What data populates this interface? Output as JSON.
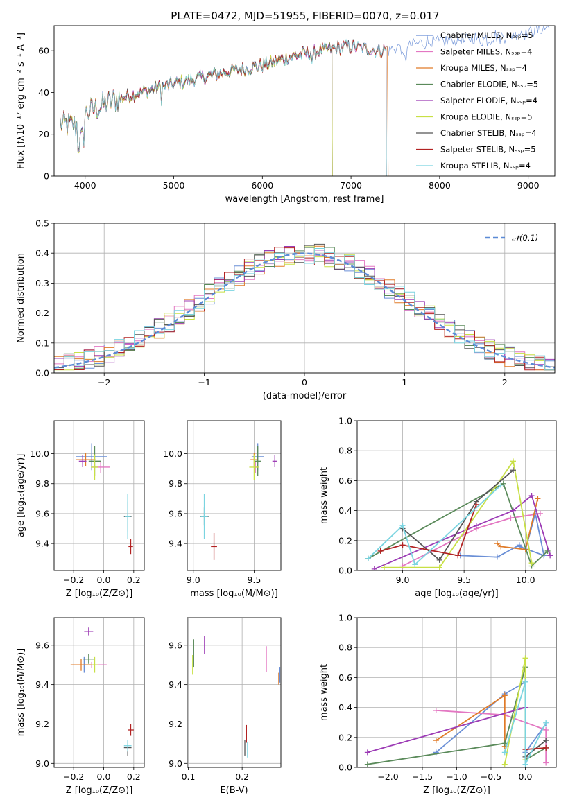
{
  "figure": {
    "title": "PLATE=0472, MJD=51955, FIBERID=0070, z=0.017"
  },
  "chart_data": [
    {
      "id": "spectrum",
      "type": "line",
      "xlabel": "wavelength [Angstrom, rest frame]",
      "ylabel": "Flux [fλ10⁻¹⁷ erg cm⁻² s⁻¹ A⁻¹]",
      "xlim": [
        3650,
        9300
      ],
      "ylim": [
        0,
        72
      ],
      "xticks": [
        4000,
        5000,
        6000,
        7000,
        8000,
        9000
      ],
      "yticks": [
        0,
        20,
        40,
        60
      ],
      "grid": false,
      "legend_position": "upper-right",
      "series": [
        {
          "name": "Chabrier MILES, Nₛₛₚ=5",
          "color": "#6a8fd6",
          "end": 9250
        },
        {
          "name": "Salpeter MILES, Nₛₛₚ=4",
          "color": "#e377c2",
          "end": 7400
        },
        {
          "name": "Kroupa MILES, Nₛₛₚ=4",
          "color": "#e07b28",
          "end": 7420
        },
        {
          "name": "Chabrier ELODIE, Nₛₛₚ=5",
          "color": "#5a8a5a",
          "end": 6790
        },
        {
          "name": "Salpeter ELODIE, Nₛₛₚ=4",
          "color": "#9c3bb5",
          "end": 6790
        },
        {
          "name": "Kroupa ELODIE, Nₛₛₚ=5",
          "color": "#c8e045",
          "end": 6790
        },
        {
          "name": "Chabrier STELIB, Nₛₛₚ=4",
          "color": "#555555",
          "end": 7400
        },
        {
          "name": "Salpeter STELIB, Nₛₛₚ=5",
          "color": "#b22222",
          "end": 7400
        },
        {
          "name": "Kroupa STELIB, Nₛₛₚ=4",
          "color": "#7ad4e0",
          "end": 7400
        }
      ],
      "anchors": {
        "x": [
          3700,
          3900,
          4000,
          4300,
          4800,
          5200,
          5600,
          6000,
          6400,
          6800,
          7000,
          7300,
          7800,
          8500,
          9000,
          9300
        ],
        "y": [
          25,
          24,
          30,
          36,
          42,
          46,
          50,
          53,
          58,
          61,
          62,
          60,
          64,
          66,
          69,
          72
        ]
      }
    },
    {
      "id": "residuals",
      "type": "bar",
      "xlabel": "(data-model)/error",
      "ylabel": "Normed distribution",
      "xlim": [
        -2.5,
        2.5
      ],
      "ylim": [
        0,
        0.5
      ],
      "xticks": [
        -2,
        -1,
        0,
        1,
        2
      ],
      "yticks": [
        0.0,
        0.1,
        0.2,
        0.3,
        0.4,
        0.5
      ],
      "grid": true,
      "bins": 50,
      "legend": {
        "name": "𝒩(0,1)",
        "color": "#5b8ad6",
        "position": "upper-right"
      }
    },
    {
      "id": "age-vs-Z",
      "type": "scatter",
      "xlabel": "Z [log₁₀(Z/Z⊙)]",
      "ylabel": "age  [log₁₀(age/yr)]",
      "xlim": [
        -0.33,
        0.27
      ],
      "ylim": [
        9.22,
        10.22
      ],
      "xticks": [
        -0.2,
        0.0,
        0.2
      ],
      "yticks": [
        9.4,
        9.6,
        9.8,
        10.0
      ],
      "grid": true,
      "points": [
        {
          "x": -0.08,
          "y": 9.98,
          "dx": 0.21,
          "dy": 0.18,
          "color": "#6a8fd6"
        },
        {
          "x": -0.02,
          "y": 9.91,
          "dx": 0.12,
          "dy": 0.08,
          "color": "#e377c2"
        },
        {
          "x": -0.12,
          "y": 9.96,
          "dx": 0.13,
          "dy": 0.09,
          "color": "#e07b28"
        },
        {
          "x": -0.06,
          "y": 9.95,
          "dx": 0.08,
          "dy": 0.2,
          "color": "#5a8a5a"
        },
        {
          "x": -0.14,
          "y": 9.95,
          "dx": 0.05,
          "dy": 0.08,
          "color": "#9c3bb5"
        },
        {
          "x": -0.06,
          "y": 9.91,
          "dx": 0.05,
          "dy": 0.17,
          "color": "#c8e045"
        },
        {
          "x": 0.16,
          "y": 9.58,
          "dx": 0.05,
          "dy": 0.2,
          "color": "#555555"
        },
        {
          "x": 0.18,
          "y": 9.38,
          "dx": 0.03,
          "dy": 0.1,
          "color": "#b22222"
        },
        {
          "x": 0.16,
          "y": 9.58,
          "dx": 0.04,
          "dy": 0.3,
          "color": "#7ad4e0"
        }
      ]
    },
    {
      "id": "age-vs-mass",
      "type": "scatter",
      "xlabel": "mass [log₁₀(M/M⊙)]",
      "ylabel": "",
      "xlim": [
        8.95,
        9.72
      ],
      "ylim": [
        9.22,
        10.22
      ],
      "xticks": [
        9.0,
        9.5
      ],
      "yticks": [
        9.4,
        9.6,
        9.8,
        10.0
      ],
      "grid": true,
      "points": [
        {
          "x": 9.53,
          "y": 9.98,
          "dx": 0.1,
          "dy": 0.18,
          "color": "#6a8fd6"
        },
        {
          "x": 9.51,
          "y": 9.91,
          "dx": 0.03,
          "dy": 0.08,
          "color": "#e377c2"
        },
        {
          "x": 9.5,
          "y": 9.96,
          "dx": 0.06,
          "dy": 0.09,
          "color": "#e07b28"
        },
        {
          "x": 9.53,
          "y": 9.95,
          "dx": 0.05,
          "dy": 0.2,
          "color": "#5a8a5a"
        },
        {
          "x": 9.67,
          "y": 9.95,
          "dx": 0.04,
          "dy": 0.08,
          "color": "#9c3bb5"
        },
        {
          "x": 9.5,
          "y": 9.91,
          "dx": 0.08,
          "dy": 0.17,
          "color": "#c8e045"
        },
        {
          "x": 9.09,
          "y": 9.58,
          "dx": 0.07,
          "dy": 0.12,
          "color": "#555555"
        },
        {
          "x": 9.17,
          "y": 9.38,
          "dx": 0.05,
          "dy": 0.18,
          "color": "#b22222"
        },
        {
          "x": 9.09,
          "y": 9.58,
          "dx": 0.06,
          "dy": 0.3,
          "color": "#7ad4e0"
        }
      ]
    },
    {
      "id": "massweight-vs-age",
      "type": "line",
      "xlabel": "age  [log₁₀(age/yr)]",
      "ylabel": "mass weight",
      "xlim": [
        8.63,
        10.25
      ],
      "ylim": [
        0,
        1
      ],
      "xticks": [
        9.0,
        9.5,
        10.0
      ],
      "yticks": [
        0.0,
        0.2,
        0.4,
        0.6,
        0.8,
        1.0
      ],
      "grid": true,
      "series": [
        {
          "color": "#6a8fd6",
          "points": [
            [
              9.47,
              0.1
            ],
            [
              9.77,
              0.09
            ],
            [
              9.95,
              0.17
            ],
            [
              10.0,
              0.14
            ],
            [
              10.08,
              0.38
            ],
            [
              10.15,
              0.1
            ],
            [
              9.95,
              0.16
            ]
          ]
        },
        {
          "color": "#e377c2",
          "points": [
            [
              9.0,
              0.03
            ],
            [
              9.6,
              0.28
            ],
            [
              9.88,
              0.35
            ],
            [
              10.12,
              0.38
            ]
          ]
        },
        {
          "color": "#e07b28",
          "points": [
            [
              9.77,
              0.18
            ],
            [
              9.8,
              0.16
            ],
            [
              10.0,
              0.14
            ],
            [
              10.1,
              0.48
            ]
          ]
        },
        {
          "color": "#5a8a5a",
          "points": [
            [
              8.72,
              0.08
            ],
            [
              9.82,
              0.58
            ],
            [
              10.05,
              0.03
            ],
            [
              10.18,
              0.13
            ]
          ]
        },
        {
          "color": "#9c3bb5",
          "points": [
            [
              8.77,
              0.01
            ],
            [
              9.6,
              0.3
            ],
            [
              9.9,
              0.4
            ],
            [
              10.05,
              0.5
            ],
            [
              10.2,
              0.1
            ]
          ]
        },
        {
          "color": "#c8e045",
          "points": [
            [
              8.85,
              0.02
            ],
            [
              9.3,
              0.02
            ],
            [
              9.9,
              0.73
            ],
            [
              10.05,
              0.05
            ]
          ]
        },
        {
          "color": "#555555",
          "points": [
            [
              9.0,
              0.28
            ],
            [
              9.3,
              0.07
            ],
            [
              9.6,
              0.46
            ],
            [
              9.9,
              0.67
            ]
          ]
        },
        {
          "color": "#b22222",
          "points": [
            [
              8.82,
              0.13
            ],
            [
              9.0,
              0.17
            ],
            [
              9.45,
              0.1
            ],
            [
              9.6,
              0.44
            ]
          ]
        },
        {
          "color": "#7ad4e0",
          "points": [
            [
              8.72,
              0.08
            ],
            [
              9.0,
              0.3
            ],
            [
              9.1,
              0.04
            ],
            [
              9.8,
              0.57
            ]
          ]
        }
      ]
    },
    {
      "id": "mass-vs-Z",
      "type": "scatter",
      "xlabel": "Z [log₁₀(Z/Z⊙)]",
      "ylabel": "mass [log₁₀(M/M⊙)]",
      "xlim": [
        -0.33,
        0.27
      ],
      "ylim": [
        8.98,
        9.74
      ],
      "xticks": [
        -0.2,
        0.0,
        0.2
      ],
      "yticks": [
        9.0,
        9.2,
        9.4,
        9.6
      ],
      "grid": true,
      "points": [
        {
          "x": -0.13,
          "y": 9.5,
          "dx": 0.15,
          "dy": 0.08,
          "color": "#6a8fd6"
        },
        {
          "x": -0.08,
          "y": 9.5,
          "dx": 0.2,
          "dy": 0.03,
          "color": "#e377c2"
        },
        {
          "x": -0.15,
          "y": 9.5,
          "dx": 0.14,
          "dy": 0.06,
          "color": "#e07b28"
        },
        {
          "x": -0.1,
          "y": 9.53,
          "dx": 0.07,
          "dy": 0.05,
          "color": "#5a8a5a"
        },
        {
          "x": -0.1,
          "y": 9.67,
          "dx": 0.06,
          "dy": 0.04,
          "color": "#9c3bb5"
        },
        {
          "x": -0.06,
          "y": 9.5,
          "dx": 0.05,
          "dy": 0.08,
          "color": "#c8e045"
        },
        {
          "x": 0.16,
          "y": 9.08,
          "dx": 0.05,
          "dy": 0.08,
          "color": "#555555"
        },
        {
          "x": 0.18,
          "y": 9.17,
          "dx": 0.04,
          "dy": 0.06,
          "color": "#b22222"
        },
        {
          "x": 0.16,
          "y": 9.09,
          "dx": 0.05,
          "dy": 0.06,
          "color": "#7ad4e0"
        }
      ]
    },
    {
      "id": "mass-vs-EBV",
      "type": "scatter",
      "xlabel": "E(B-V)",
      "ylabel": "",
      "xlim": [
        0.098,
        0.272
      ],
      "ylim": [
        8.98,
        9.74
      ],
      "xticks": [
        0.1,
        0.2
      ],
      "yticks": [
        9.0,
        9.2,
        9.4,
        9.6
      ],
      "grid": true,
      "points": [
        {
          "x": 0.27,
          "y": 9.45,
          "dy": 0.08,
          "color": "#6a8fd6"
        },
        {
          "x": 0.245,
          "y": 9.53,
          "dy": 0.13,
          "color": "#e377c2"
        },
        {
          "x": 0.268,
          "y": 9.43,
          "dy": 0.06,
          "color": "#e07b28"
        },
        {
          "x": 0.11,
          "y": 9.56,
          "dy": 0.14,
          "color": "#5a8a5a"
        },
        {
          "x": 0.13,
          "y": 9.6,
          "dy": 0.09,
          "color": "#9c3bb5"
        },
        {
          "x": 0.108,
          "y": 9.5,
          "dy": 0.1,
          "color": "#c8e045"
        },
        {
          "x": 0.205,
          "y": 9.08,
          "dy": 0.08,
          "color": "#555555"
        },
        {
          "x": 0.208,
          "y": 9.15,
          "dy": 0.09,
          "color": "#b22222"
        },
        {
          "x": 0.21,
          "y": 9.07,
          "dy": 0.08,
          "color": "#7ad4e0"
        }
      ]
    },
    {
      "id": "massweight-vs-Z",
      "type": "line",
      "xlabel": "Z [log₁₀(Z/Z⊙)]",
      "ylabel": "mass weight",
      "xlim": [
        -2.45,
        0.45
      ],
      "ylim": [
        0,
        1
      ],
      "xticks": [
        -2.0,
        -1.5,
        -1.0,
        -0.5,
        0.0
      ],
      "yticks": [
        0.0,
        0.2,
        0.4,
        0.6,
        0.8,
        1.0
      ],
      "grid": true,
      "series": [
        {
          "color": "#6a8fd6",
          "points": [
            [
              -1.3,
              0.1
            ],
            [
              -0.3,
              0.49
            ],
            [
              0.0,
              0.57
            ],
            [
              0.0,
              0.1
            ],
            [
              0.3,
              0.29
            ]
          ]
        },
        {
          "color": "#e377c2",
          "points": [
            [
              -1.3,
              0.38
            ],
            [
              -0.3,
              0.35
            ],
            [
              0.3,
              0.25
            ],
            [
              0.3,
              0.03
            ]
          ]
        },
        {
          "color": "#e07b28",
          "points": [
            [
              -1.3,
              0.18
            ],
            [
              -0.3,
              0.48
            ],
            [
              -0.3,
              0.14
            ]
          ]
        },
        {
          "color": "#5a8a5a",
          "points": [
            [
              -2.3,
              0.02
            ],
            [
              -0.3,
              0.16
            ],
            [
              0.0,
              0.67
            ],
            [
              0.0,
              0.05
            ],
            [
              0.3,
              0.13
            ]
          ]
        },
        {
          "color": "#9c3bb5",
          "points": [
            [
              -2.3,
              0.1
            ],
            [
              0.0,
              0.4
            ]
          ]
        },
        {
          "color": "#c8e045",
          "points": [
            [
              -0.3,
              0.02
            ],
            [
              0.0,
              0.73
            ],
            [
              0.0,
              0.05
            ]
          ]
        },
        {
          "color": "#555555",
          "points": [
            [
              0.0,
              0.07
            ],
            [
              0.3,
              0.18
            ]
          ]
        },
        {
          "color": "#b22222",
          "points": [
            [
              0.0,
              0.12
            ],
            [
              0.3,
              0.13
            ]
          ]
        },
        {
          "color": "#7ad4e0",
          "points": [
            [
              -0.3,
              0.1
            ],
            [
              0.0,
              0.57
            ],
            [
              0.0,
              0.02
            ],
            [
              0.3,
              0.3
            ]
          ]
        }
      ]
    }
  ]
}
